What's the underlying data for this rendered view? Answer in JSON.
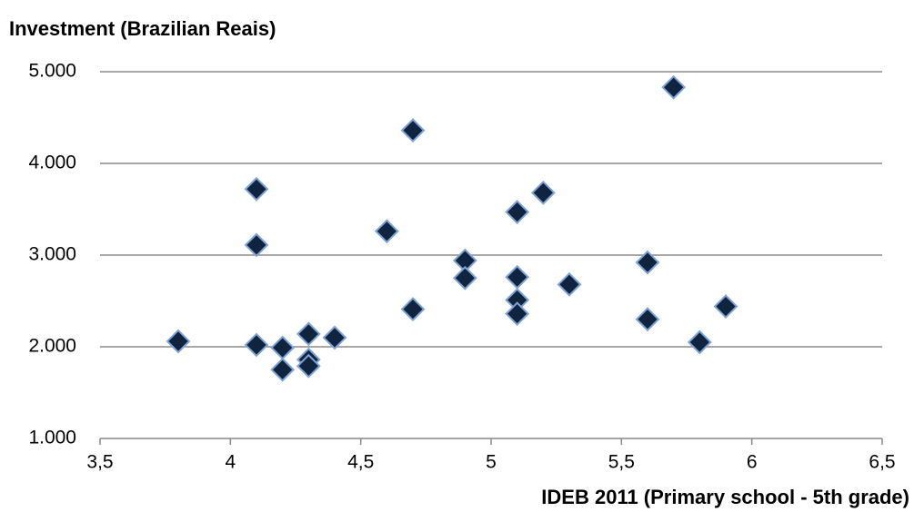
{
  "chart_data": {
    "type": "scatter",
    "title": "Investment  (Brazilian Reais)",
    "x_label": "IDEB 2011  (Primary school - 5th grade)",
    "series": [
      {
        "color": "#10243f",
        "edge_color": "#7ea3d6",
        "x": [
          3.8,
          4.1,
          4.1,
          4.1,
          4.2,
          4.2,
          4.3,
          4.3,
          4.3,
          4.4,
          4.6,
          4.7,
          4.7,
          4.9,
          4.9,
          5.1,
          5.1,
          5.1,
          5.1,
          5.2,
          5.3,
          5.6,
          5.6,
          5.7,
          5.8,
          5.9
        ],
        "values": [
          2060,
          3720,
          3110,
          2020,
          1990,
          1750,
          2140,
          1860,
          1790,
          2100,
          3260,
          4360,
          2410,
          2940,
          2750,
          3470,
          2760,
          2510,
          2360,
          3680,
          2680,
          2920,
          2300,
          4830,
          2050,
          2440
        ]
      }
    ],
    "xlim": [
      3.5,
      6.5
    ],
    "xticks": [
      {
        "value": 3.5,
        "label": "3,5"
      },
      4,
      {
        "value": 4.5,
        "label": "4,5"
      },
      5,
      {
        "value": 5.5,
        "label": "5,5"
      },
      6,
      {
        "value": 6.5,
        "label": "6,5"
      }
    ],
    "ylim": [
      1000,
      5000
    ],
    "yticks": [
      {
        "value": 1000,
        "label": "1.000"
      },
      {
        "value": 2000,
        "label": "2.000"
      },
      {
        "value": 3000,
        "label": "3.000"
      },
      {
        "value": 4000,
        "label": "4.000"
      },
      {
        "value": 5000,
        "label": "5.000"
      }
    ],
    "grid": true
  }
}
